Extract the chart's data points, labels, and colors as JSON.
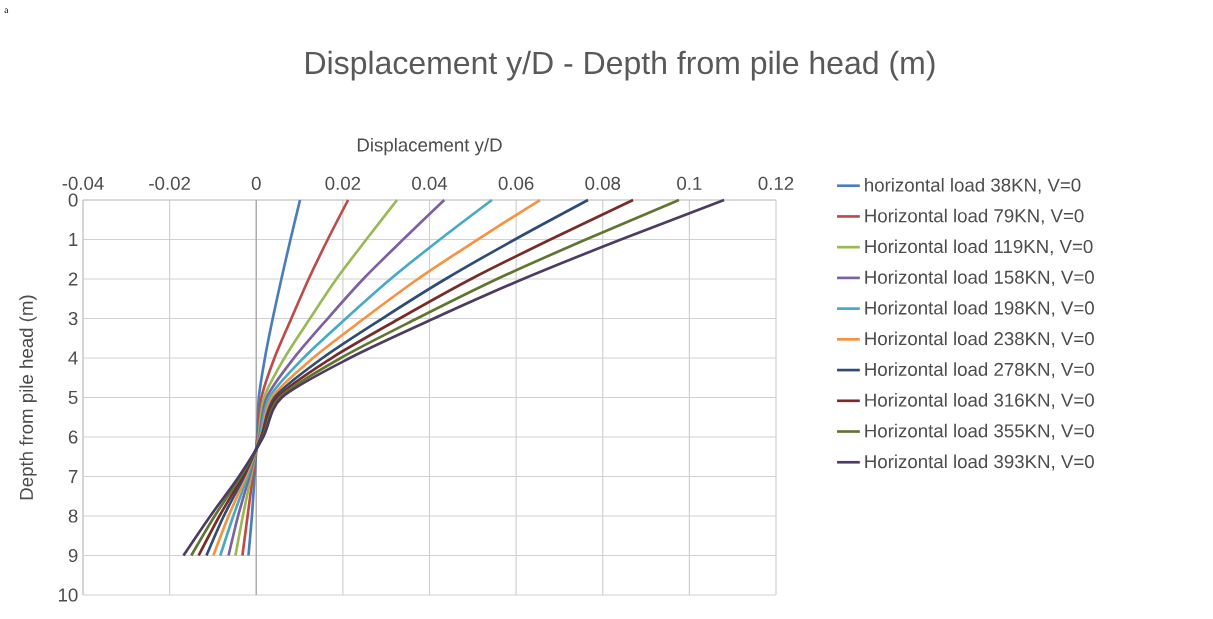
{
  "chart_data": {
    "type": "line",
    "title": "Displacement y/D  - Depth from pile head (m)",
    "xlabel": "Displacement y/D",
    "ylabel": "Depth from pile head (m)",
    "annotations": [
      "a"
    ],
    "xlim": [
      -0.04,
      0.12
    ],
    "xticks": [
      -0.04,
      -0.02,
      0,
      0.02,
      0.04,
      0.06,
      0.08,
      0.1,
      0.12
    ],
    "ylim": [
      10,
      0
    ],
    "yticks": [
      0,
      1,
      2,
      3,
      4,
      5,
      6,
      7,
      8,
      9,
      10
    ],
    "grid": true,
    "legend": "right",
    "marker": "none",
    "line_style": "solid",
    "series": [
      {
        "name": "horizontal load 38KN, V=0",
        "color": "#4a7ebb",
        "x": [
          0.0101,
          0.0079,
          0.0058,
          0.0038,
          0.002,
          0.0006,
          0.0002,
          -0.0004,
          -0.001,
          -0.0018
        ],
        "values": [
          0,
          1,
          2,
          3,
          4,
          5,
          6,
          7,
          8,
          9
        ]
      },
      {
        "name": "Horizontal load 79KN, V=0",
        "color": "#be4b48",
        "x": [
          0.0212,
          0.0165,
          0.0121,
          0.0081,
          0.0042,
          0.0012,
          0.0003,
          -0.0008,
          -0.002,
          -0.0032
        ],
        "values": [
          0,
          1,
          2,
          3,
          4,
          5,
          6,
          7,
          8,
          9
        ]
      },
      {
        "name": "Horizontal load 119KN, V=0",
        "color": "#98b954",
        "x": [
          0.0325,
          0.0254,
          0.0185,
          0.0124,
          0.0065,
          0.0018,
          0.0005,
          -0.0012,
          -0.0031,
          -0.0048
        ],
        "values": [
          0,
          1,
          2,
          3,
          4,
          5,
          6,
          7,
          8,
          9
        ]
      },
      {
        "name": "Horizontal load 158KN, V=0",
        "color": "#7d60a0",
        "x": [
          0.0434,
          0.0339,
          0.0247,
          0.0165,
          0.0087,
          0.0024,
          0.0007,
          -0.0016,
          -0.0042,
          -0.0064
        ],
        "values": [
          0,
          1,
          2,
          3,
          4,
          5,
          6,
          7,
          8,
          9
        ]
      },
      {
        "name": "Horizontal load 198KN, V=0",
        "color": "#46aac5",
        "x": [
          0.0544,
          0.0424,
          0.031,
          0.0207,
          0.0109,
          0.003,
          0.0008,
          -0.002,
          -0.0053,
          -0.0083
        ],
        "values": [
          0,
          1,
          2,
          3,
          4,
          5,
          6,
          7,
          8,
          9
        ]
      },
      {
        "name": "Horizontal load 238KN, V=0",
        "color": "#f69240",
        "x": [
          0.0655,
          0.0511,
          0.0373,
          0.0249,
          0.0131,
          0.0036,
          0.001,
          -0.0024,
          -0.0064,
          -0.0099
        ],
        "values": [
          0,
          1,
          2,
          3,
          4,
          5,
          6,
          7,
          8,
          9
        ]
      },
      {
        "name": "Horizontal load 278KN, V=0",
        "color": "#2c4d75",
        "x": [
          0.0766,
          0.0597,
          0.0437,
          0.0291,
          0.0153,
          0.0042,
          0.0011,
          -0.0028,
          -0.0075,
          -0.0115
        ],
        "values": [
          0,
          1,
          2,
          3,
          4,
          5,
          6,
          7,
          8,
          9
        ]
      },
      {
        "name": "Horizontal load 316KN, V=0",
        "color": "#772c2a",
        "x": [
          0.087,
          0.0679,
          0.0496,
          0.0331,
          0.0174,
          0.0048,
          0.0013,
          -0.0032,
          -0.0085,
          -0.0133
        ],
        "values": [
          0,
          1,
          2,
          3,
          4,
          5,
          6,
          7,
          8,
          9
        ]
      },
      {
        "name": "Horizontal load 355KN, V=0",
        "color": "#5f7530",
        "x": [
          0.0976,
          0.0761,
          0.0556,
          0.0371,
          0.0195,
          0.0054,
          0.0015,
          -0.0036,
          -0.0096,
          -0.015
        ],
        "values": [
          0,
          1,
          2,
          3,
          4,
          5,
          6,
          7,
          8,
          9
        ]
      },
      {
        "name": "Horizontal load 393KN, V=0",
        "color": "#4d3b62",
        "x": [
          0.108,
          0.0842,
          0.0616,
          0.041,
          0.0216,
          0.0059,
          0.0016,
          -0.004,
          -0.0106,
          -0.0168
        ],
        "values": [
          0,
          1,
          2,
          3,
          4,
          5,
          6,
          7,
          8,
          9
        ]
      }
    ]
  }
}
